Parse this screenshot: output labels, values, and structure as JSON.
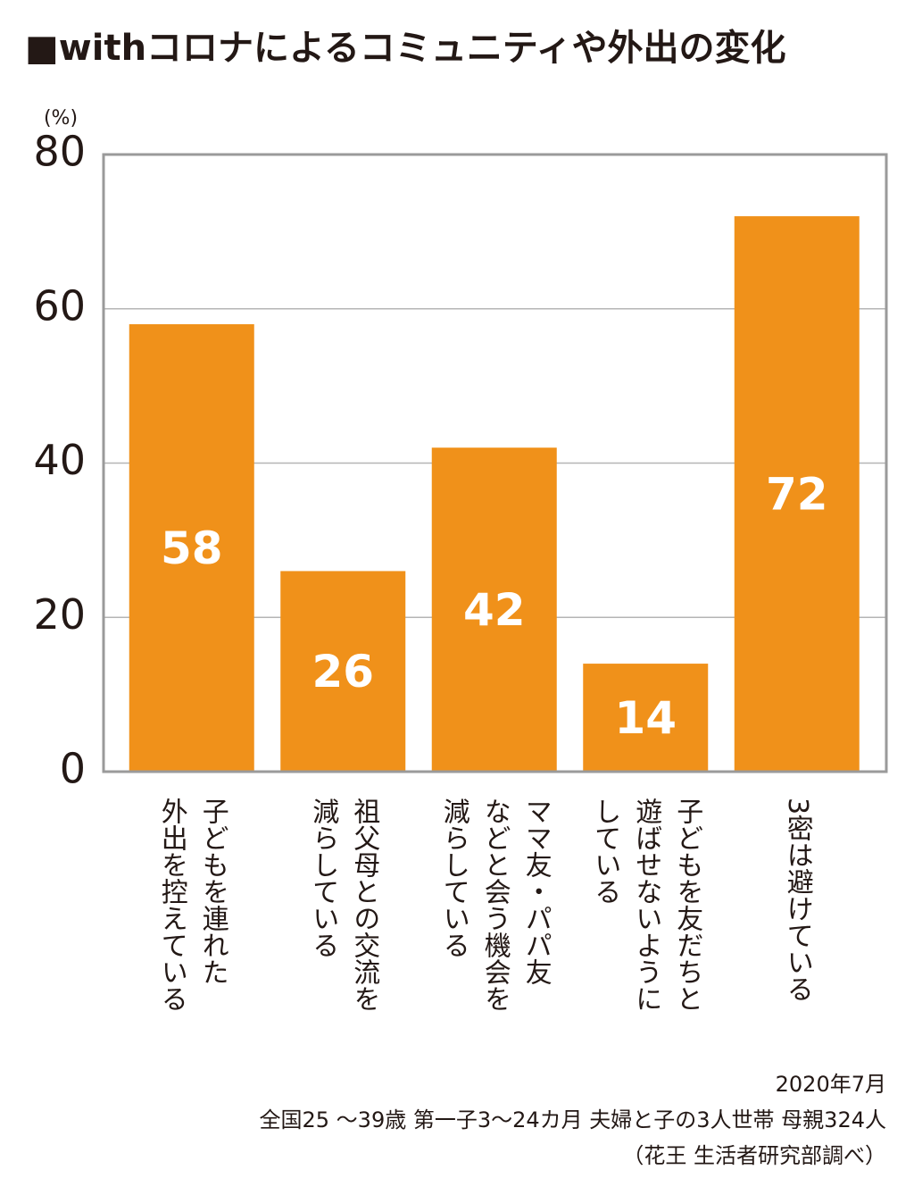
{
  "chart_data": {
    "type": "bar",
    "title": "■withコロナによるコミュニティや外出の変化",
    "y_unit": "(%)",
    "categories": [
      [
        "子どもを連れた",
        "外出を控えている"
      ],
      [
        "祖父母との交流を",
        "減らしている"
      ],
      [
        "ママ友・パパ友",
        "などと会う機会を",
        "減らしている"
      ],
      [
        "子どもを友だちと",
        "遊ばせないように",
        "している"
      ],
      [
        "3密は避けている"
      ]
    ],
    "values": [
      58,
      26,
      42,
      14,
      72
    ],
    "color": "#f0911a",
    "ylim": [
      0,
      80
    ],
    "yticks": [
      0,
      20,
      40,
      60,
      80
    ],
    "grid": true,
    "notes": [
      "2020年7月",
      "全国25 〜39歳 第一子3〜24カ月 夫婦と子の3人世帯 母親324人",
      "（花王 生活者研究部調べ）"
    ]
  }
}
